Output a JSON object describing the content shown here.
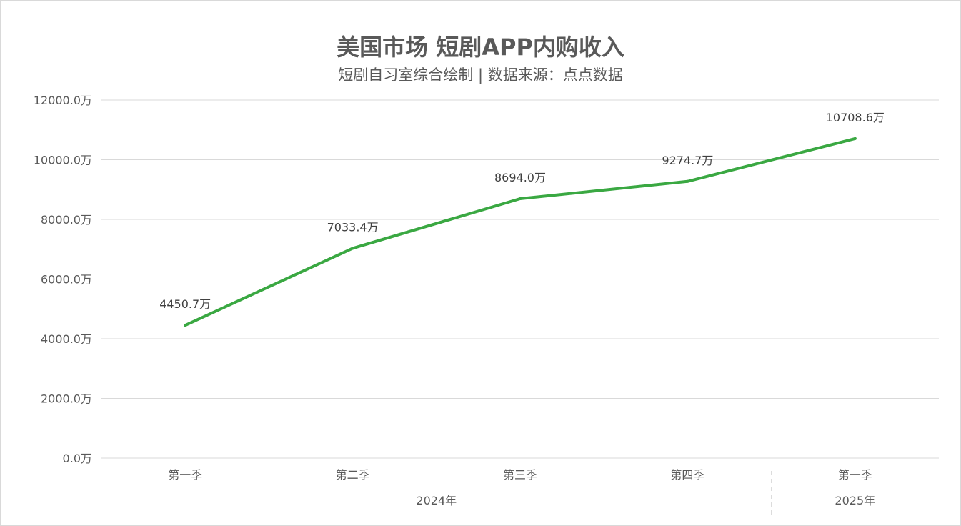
{
  "chart_data": {
    "type": "line",
    "title": "美国市场 短剧APP内购收入",
    "subtitle": "短剧自习室综合绘制 | 数据来源：点点数据",
    "categories": [
      "第一季",
      "第二季",
      "第三季",
      "第四季",
      "第一季"
    ],
    "groups": [
      {
        "label": "2024年",
        "span": 4
      },
      {
        "label": "2025年",
        "span": 1
      }
    ],
    "series": [
      {
        "values": [
          4450.7,
          7033.4,
          8694.0,
          9274.7,
          10708.6
        ],
        "color": "#3aa842"
      }
    ],
    "data_labels": [
      "4450.7万",
      "7033.4万",
      "8694.0万",
      "9274.7万",
      "10708.6万"
    ],
    "y_ticks": [
      "0.0万",
      "2000.0万",
      "4000.0万",
      "6000.0万",
      "8000.0万",
      "10000.0万",
      "12000.0万"
    ],
    "ylim": [
      0,
      12000
    ],
    "grid": true,
    "legend": "none"
  }
}
